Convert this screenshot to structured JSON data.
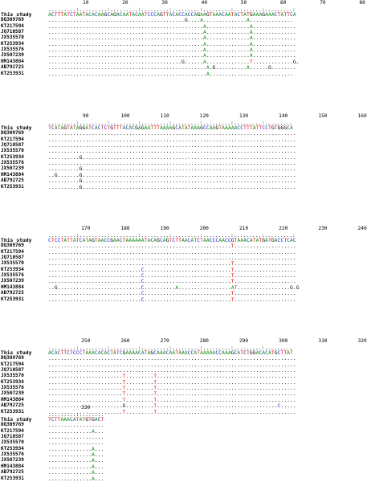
{
  "taxa": [
    "This study",
    "DQ309769",
    "KT217594",
    "JQ710587",
    "JX535570",
    "KT253934",
    "JX535576",
    "JX507239",
    "HM143884",
    "AB792725",
    "KT253931"
  ],
  "blocks": [
    {
      "ticks": [
        10,
        20,
        30,
        40,
        50,
        60,
        70,
        80
      ],
      "rows": [
        "ACTTTATCTAATACACAAGCAGACAATACAATCCCAGTTACACCACCAGAAGTAAACAATACTATGAAAGAAACTATTCA",
        "............................................G....A..............A..............",
        "..................................................A..............A..............",
        "..................................................A..............A..............",
        "..................................................A..............A..............",
        "..................................................A..............A..............",
        "..................................................A..............A..............",
        "..................................................A..............A..............",
        "...........................................G......A..............T.............G.",
        "...................................................A.G..........A......G........",
        "...................................................A..........................."
      ]
    },
    {
      "ticks": [
        90,
        100,
        110,
        120,
        130,
        140,
        150,
        160
      ],
      "rows": [
        "TCATAGTATAGGATCACTCTGTTTACACGAGAATTTAAAAGCATATAAAGCCAAGTAAAAACCTTTATTCCTGTGGGCA",
        "................................................................................",
        "................................................................................",
        "................................................................................",
        "................................................................................",
        "..........G.....................................................................",
        "................................................................................",
        "..........G.....................................................................",
        "..G.......G.....................................................................",
        "..........G.....................................................................",
        "..........G....................................................................."
      ]
    },
    {
      "ticks": [
        170,
        180,
        190,
        200,
        210,
        220,
        230,
        240
      ],
      "rows": [
        "CTCCTATTATCATAGTAACCGAACTAAAAAATACAGCAGTCTTAACATCTAACCCAACCGTAAACATATGATGACCTCAC",
        "...........................................................T....................",
        "................................................................................",
        "................................................................................",
        "...........................................................T....................",
        "..............................C............................T....................",
        "..............................C............................T....................",
        "..............................C............................T....................",
        "..G...........................C..........A.................AT.................G.G",
        "..............................C............................T....................",
        "..............................C............................T...................."
      ]
    },
    {
      "ticks": [
        250,
        260,
        270,
        280,
        290,
        300,
        310,
        320
      ],
      "rows": [
        "ACACTTCTCCCTAAACACACTATCGAAAACATAGCAAACAATAAACCATAAAAACCAAAGCATCTGGACACATGCTTAT",
        "................................................................................",
        "................................................................................",
        "................................................................................",
        "........................T.........T.............................................",
        "........................T.........T.............................................",
        "........................T.........T.............................................",
        "........................T.........T.............................................",
        "........................T.........T.............................................",
        "........................G.........T.......................................C.....",
        "........................T.........T............................................."
      ]
    },
    {
      "ticks": [
        330
      ],
      "rows": [
        "TCTTAAACATATGTGACT",
        "..................",
        "..............A...",
        "..................",
        "..................",
        "..............A...",
        "..............A...",
        "..............A...",
        "..............A...",
        "..............A...",
        "..............A..."
      ]
    }
  ]
}
